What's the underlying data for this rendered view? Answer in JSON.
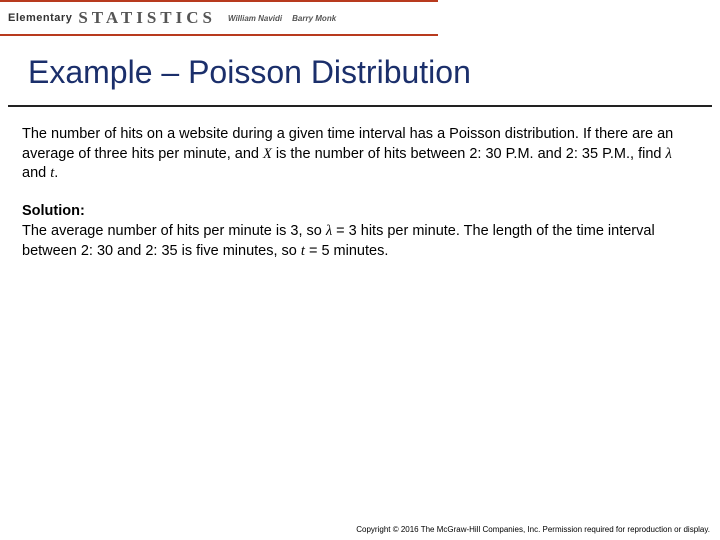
{
  "header": {
    "elementary": "Elementary",
    "statistics": "STATISTICS",
    "author1": "William Navidi",
    "author2": "Barry Monk",
    "border_color": "#b83a1e"
  },
  "title": {
    "text": "Example – Poisson Distribution",
    "color": "#1b2f6b",
    "fontsize": 32
  },
  "problem": {
    "part1": "The number of hits on a website during a given time interval has a Poisson distribution.  If there are an average of three hits per minute, and ",
    "var1": "X",
    "part2": " is the number of hits between 2: 30 P.M. and 2: 35 P.M., find ",
    "var2": "λ",
    "part3": " and ",
    "var3": "t",
    "part4": "."
  },
  "solution": {
    "label": "Solution:",
    "part1": "The average number of hits per minute is 3, so ",
    "var1": "λ",
    "part2": " = 3 hits per minute.  The length of the time interval between 2: 30 and 2: 35 is five minutes, so ",
    "var2": "t",
    "part3": " = 5 minutes."
  },
  "copyright": "Copyright © 2016 The McGraw-Hill Companies, Inc. Permission required for reproduction or display."
}
